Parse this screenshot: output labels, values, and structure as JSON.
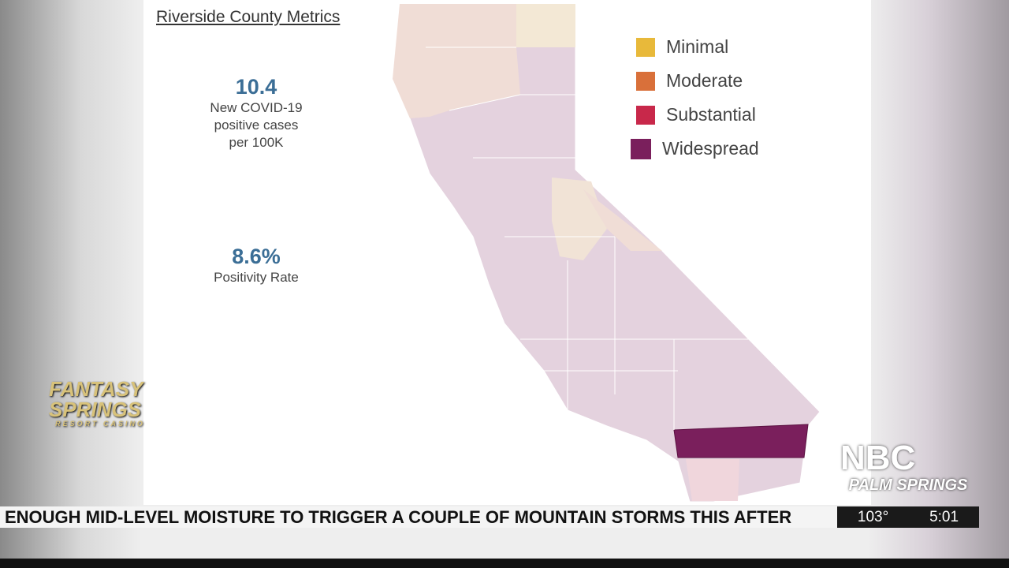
{
  "panel": {
    "title": "Riverside County Metrics",
    "metrics": [
      {
        "value": "10.4",
        "caption": [
          "New COVID-19",
          "positive cases",
          "per 100K"
        ]
      },
      {
        "value": "8.6%",
        "caption": [
          "Positivity Rate"
        ]
      }
    ]
  },
  "legend": [
    {
      "label": "Minimal",
      "color": "#e8b93a"
    },
    {
      "label": "Moderate",
      "color": "#d9703a"
    },
    {
      "label": "Substantial",
      "color": "#c8284a"
    },
    {
      "label": "Widespread",
      "color": "#7a1f5c"
    }
  ],
  "sponsor": {
    "name": [
      "FANTASY",
      "SPRINGS"
    ],
    "tagline": "RESORT CASINO"
  },
  "station": {
    "network": "NBC",
    "city": "PALM SPRINGS"
  },
  "ticker": {
    "text": "ENOUGH MID-LEVEL MOISTURE TO TRIGGER A COUPLE OF MOUNTAIN STORMS THIS AFTER",
    "temperature": "103°",
    "time": "5:01"
  }
}
